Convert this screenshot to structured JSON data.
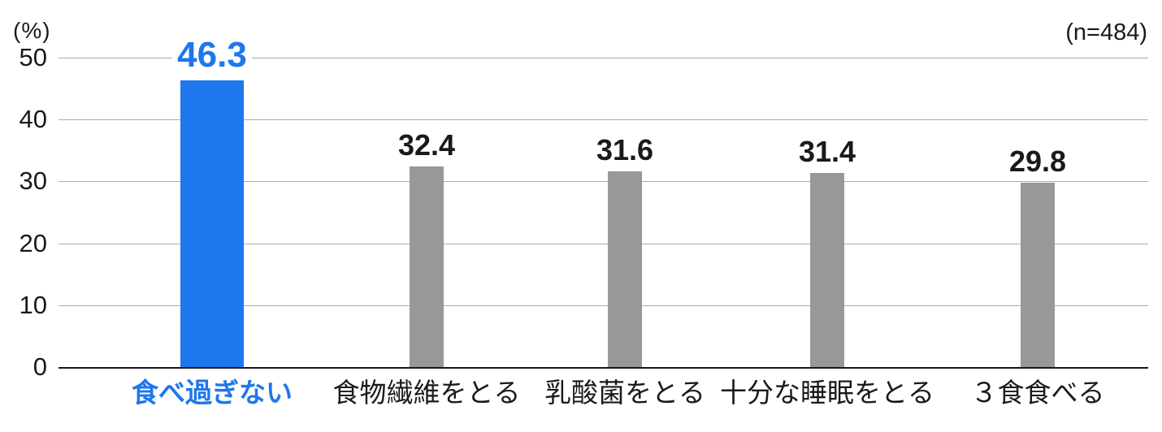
{
  "chart_data": {
    "type": "bar",
    "title": "",
    "ylabel": "(%)",
    "n_label": "(n=484)",
    "categories": [
      "食べ過ぎない",
      "食物繊維をとる",
      "乳酸菌をとる",
      "十分な睡眠をとる",
      "３食食べる"
    ],
    "values": [
      46.3,
      32.4,
      31.6,
      31.4,
      29.8
    ],
    "value_labels": [
      "46.3",
      "32.4",
      "31.6",
      "31.4",
      "29.8"
    ],
    "yticks_desc": [
      50,
      40,
      30,
      20,
      10,
      0
    ],
    "ylim": [
      0,
      50
    ],
    "grid": "horizontal",
    "legend": "none",
    "highlight_index": 0,
    "colors": {
      "highlight": "#1e77ec",
      "bar": "#989898",
      "text": "#1a1a1a",
      "gridline": "#ababab",
      "baseline": "#1a1a1a"
    }
  }
}
